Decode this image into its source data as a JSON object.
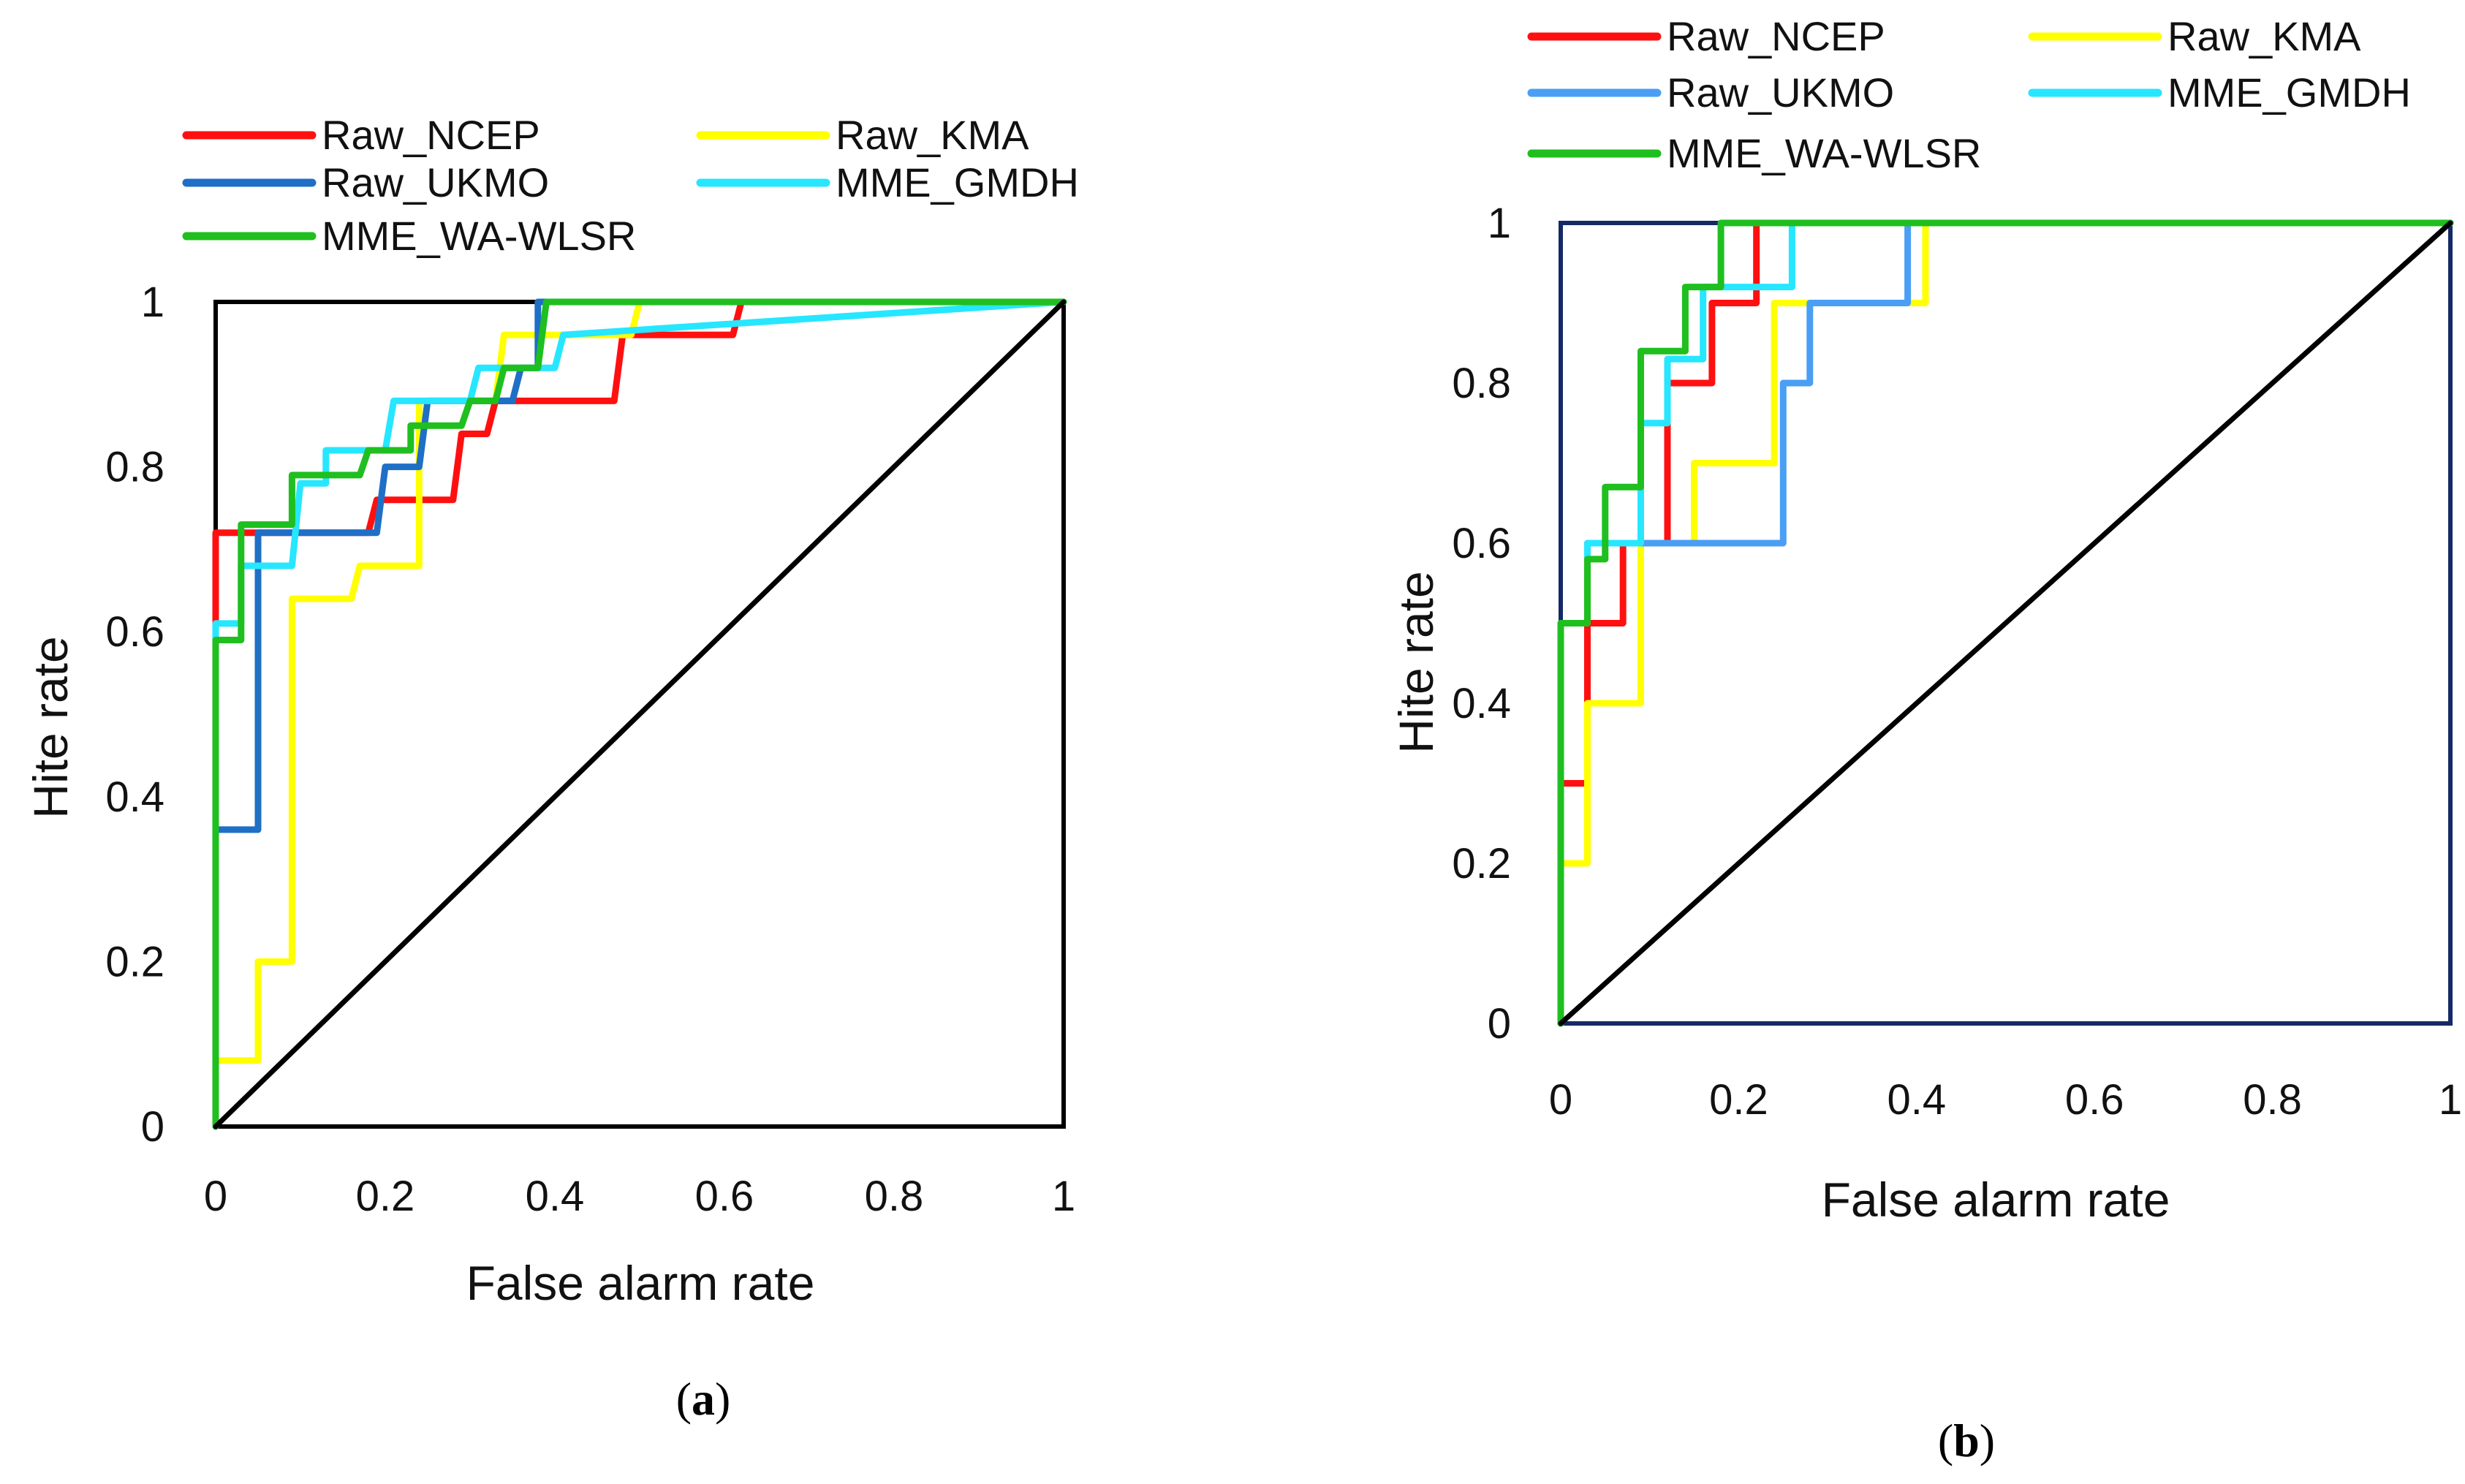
{
  "colors": {
    "Raw_NCEP": "#ff1010",
    "Raw_UKMO_a": "#1f6fc6",
    "Raw_UKMO_b": "#4a9ff5",
    "Raw_KMA": "#ffff00",
    "MME_GMDH": "#27e6ff",
    "MME_WA-WLSR": "#1fbf1f",
    "diagonal": "#000000",
    "frame_a": "#000000",
    "frame_b": "#142a66"
  },
  "chart_data": [
    {
      "type": "line",
      "panel_label": {
        "open": "(",
        "letter": "a",
        "close": ")"
      },
      "xlabel": "False alarm rate",
      "ylabel": "Hite rate",
      "xlim": [
        0,
        1
      ],
      "ylim": [
        0,
        1
      ],
      "xticks": [
        "0",
        "0.2",
        "0.4",
        "0.6",
        "0.8",
        "1"
      ],
      "yticks": [
        "0",
        "0.2",
        "0.4",
        "0.6",
        "0.8",
        "1"
      ],
      "grid": false,
      "legend_position": "top",
      "series": [
        {
          "name": "Raw_NCEP",
          "color_key": "Raw_NCEP",
          "x": [
            0,
            0,
            0.04,
            0.04,
            0.18,
            0.19,
            0.28,
            0.29,
            0.32,
            0.33,
            0.47,
            0.48,
            0.61,
            0.62,
            1
          ],
          "y": [
            0,
            0.72,
            0.72,
            0.72,
            0.72,
            0.76,
            0.76,
            0.84,
            0.84,
            0.88,
            0.88,
            0.96,
            0.96,
            1,
            1
          ]
        },
        {
          "name": "Raw_KMA",
          "color_key": "Raw_KMA",
          "x": [
            0,
            0,
            0.05,
            0.05,
            0.09,
            0.09,
            0.16,
            0.17,
            0.24,
            0.24,
            0.33,
            0.34,
            0.49,
            0.5,
            1
          ],
          "y": [
            0,
            0.08,
            0.08,
            0.2,
            0.2,
            0.64,
            0.64,
            0.68,
            0.68,
            0.88,
            0.88,
            0.96,
            0.96,
            1,
            1
          ]
        },
        {
          "name": "Raw_UKMO",
          "color_key": "Raw_UKMO_a",
          "x": [
            0,
            0,
            0.05,
            0.05,
            0.19,
            0.2,
            0.24,
            0.25,
            0.35,
            0.36,
            0.38,
            0.38,
            1
          ],
          "y": [
            0,
            0.36,
            0.36,
            0.72,
            0.72,
            0.8,
            0.8,
            0.88,
            0.88,
            0.92,
            0.92,
            1,
            1
          ]
        },
        {
          "name": "MME_GMDH",
          "color_key": "MME_GMDH",
          "x": [
            0,
            0,
            0.03,
            0.03,
            0.09,
            0.1,
            0.13,
            0.13,
            0.2,
            0.21,
            0.3,
            0.31,
            0.4,
            0.41,
            1
          ],
          "y": [
            0,
            0.61,
            0.61,
            0.68,
            0.68,
            0.78,
            0.78,
            0.82,
            0.82,
            0.88,
            0.88,
            0.92,
            0.92,
            0.96,
            1
          ]
        },
        {
          "name": "MME_WA-WLSR",
          "color_key": "MME_WA-WLSR",
          "x": [
            0,
            0,
            0.03,
            0.03,
            0.09,
            0.09,
            0.17,
            0.18,
            0.23,
            0.23,
            0.29,
            0.3,
            0.33,
            0.34,
            0.38,
            0.39,
            1
          ],
          "y": [
            0,
            0.59,
            0.59,
            0.73,
            0.73,
            0.79,
            0.79,
            0.82,
            0.82,
            0.85,
            0.85,
            0.88,
            0.88,
            0.92,
            0.92,
            1,
            1
          ]
        },
        {
          "name": "",
          "color_key": "diagonal",
          "x": [
            0,
            1
          ],
          "y": [
            0,
            1
          ]
        }
      ],
      "legend": [
        {
          "label": "Raw_NCEP",
          "color_key": "Raw_NCEP"
        },
        {
          "label": "Raw_KMA",
          "color_key": "Raw_KMA"
        },
        {
          "label": "Raw_UKMO",
          "color_key": "Raw_UKMO_a"
        },
        {
          "label": "MME_GMDH",
          "color_key": "MME_GMDH"
        },
        {
          "label": "MME_WA-WLSR",
          "color_key": "MME_WA-WLSR"
        }
      ]
    },
    {
      "type": "line",
      "panel_label": {
        "open": "(",
        "letter": "b",
        "close": ")"
      },
      "xlabel": "False alarm rate",
      "ylabel": "Hite rate",
      "xlim": [
        0,
        1
      ],
      "ylim": [
        0,
        1
      ],
      "xticks": [
        "0",
        "0.2",
        "0.4",
        "0.6",
        "0.8",
        "1"
      ],
      "yticks": [
        "0",
        "0.2",
        "0.4",
        "0.6",
        "0.8",
        "1"
      ],
      "grid": false,
      "legend_position": "top",
      "series": [
        {
          "name": "Raw_NCEP",
          "color_key": "Raw_NCEP",
          "x": [
            0,
            0,
            0.03,
            0.03,
            0.07,
            0.07,
            0.12,
            0.12,
            0.17,
            0.17,
            0.22,
            0.22,
            1
          ],
          "y": [
            0,
            0.3,
            0.3,
            0.5,
            0.5,
            0.6,
            0.6,
            0.8,
            0.8,
            0.9,
            0.9,
            1,
            1
          ]
        },
        {
          "name": "Raw_KMA",
          "color_key": "Raw_KMA",
          "x": [
            0,
            0,
            0.03,
            0.03,
            0.09,
            0.09,
            0.15,
            0.15,
            0.24,
            0.24,
            0.41,
            0.41,
            1
          ],
          "y": [
            0,
            0.2,
            0.2,
            0.4,
            0.4,
            0.6,
            0.6,
            0.7,
            0.7,
            0.9,
            0.9,
            1,
            1
          ]
        },
        {
          "name": "Raw_UKMO",
          "color_key": "Raw_UKMO_b",
          "x": [
            0,
            0,
            0.03,
            0.03,
            0.25,
            0.25,
            0.28,
            0.28,
            0.39,
            0.39,
            1
          ],
          "y": [
            0,
            0.5,
            0.5,
            0.6,
            0.6,
            0.8,
            0.8,
            0.9,
            0.9,
            1,
            1
          ]
        },
        {
          "name": "MME_GMDH",
          "color_key": "MME_GMDH",
          "x": [
            0,
            0,
            0.03,
            0.03,
            0.09,
            0.09,
            0.12,
            0.12,
            0.16,
            0.16,
            0.26,
            0.26,
            1
          ],
          "y": [
            0,
            0.5,
            0.5,
            0.6,
            0.6,
            0.75,
            0.75,
            0.83,
            0.83,
            0.92,
            0.92,
            1,
            1
          ]
        },
        {
          "name": "MME_WA-WLSR",
          "color_key": "MME_WA-WLSR",
          "x": [
            0,
            0,
            0.03,
            0.03,
            0.05,
            0.05,
            0.09,
            0.09,
            0.14,
            0.14,
            0.18,
            0.18,
            1
          ],
          "y": [
            0,
            0.5,
            0.5,
            0.58,
            0.58,
            0.67,
            0.67,
            0.84,
            0.84,
            0.92,
            0.92,
            1,
            1
          ]
        },
        {
          "name": "",
          "color_key": "diagonal",
          "x": [
            0,
            1
          ],
          "y": [
            0,
            1
          ]
        }
      ],
      "legend": [
        {
          "label": "Raw_NCEP",
          "color_key": "Raw_NCEP"
        },
        {
          "label": "Raw_KMA",
          "color_key": "Raw_KMA"
        },
        {
          "label": "Raw_UKMO",
          "color_key": "Raw_UKMO_b"
        },
        {
          "label": "MME_GMDH",
          "color_key": "MME_GMDH"
        },
        {
          "label": "MME_WA-WLSR",
          "color_key": "MME_WA-WLSR"
        }
      ]
    }
  ]
}
